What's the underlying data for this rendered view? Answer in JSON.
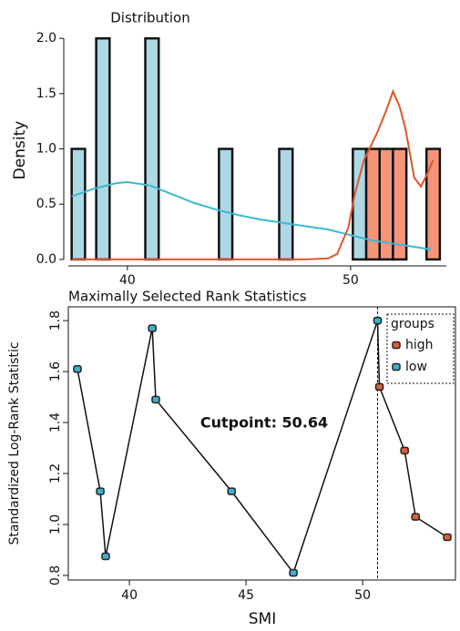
{
  "chart_data": [
    {
      "type": "histogram",
      "title": "Distribution",
      "ylabel": "Density",
      "xlim": [
        37.35,
        54.29
      ],
      "ylim": [
        -0.05,
        2.1
      ],
      "xticks": [
        40,
        50
      ],
      "yticks": [
        {
          "value": 0,
          "label": "0.0"
        },
        0.5,
        {
          "value": 1,
          "label": "1.0"
        },
        1.5,
        {
          "value": 2,
          "label": "2.0"
        }
      ],
      "series": [
        {
          "color": "#add8e6",
          "bins": [
            37.5,
            38.1,
            38.6,
            39.2,
            40.8,
            41.4,
            44.1,
            44.7,
            46.8,
            47.4,
            50.1,
            50.7
          ],
          "counts": [
            1,
            0,
            2,
            0,
            2,
            0,
            1,
            0,
            1,
            0,
            1
          ]
        },
        {
          "color": "#f4957a",
          "bins": [
            50.7,
            51.3,
            51.9,
            52.5,
            53.4,
            54.0
          ],
          "counts": [
            1,
            1,
            1,
            0,
            1
          ]
        }
      ],
      "lines": [
        {
          "color": "#3cb9d2",
          "x": [
            37.5,
            38.5,
            39.5,
            40,
            41,
            42,
            43,
            44,
            45,
            46,
            47,
            48,
            49,
            50,
            51,
            52,
            53,
            53.6
          ],
          "values": [
            0.57,
            0.64,
            0.69,
            0.7,
            0.67,
            0.59,
            0.51,
            0.45,
            0.4,
            0.36,
            0.33,
            0.3,
            0.27,
            0.22,
            0.17,
            0.14,
            0.11,
            0.09
          ]
        },
        {
          "color": "#e0552a",
          "x": [
            37.5,
            40,
            45,
            48,
            49,
            49.4,
            49.9,
            50.2,
            50.6,
            51.2,
            51.6,
            51.9,
            52.2,
            52.45,
            52.85,
            53.15,
            53.45,
            53.7
          ],
          "values": [
            0,
            0,
            0,
            0,
            0.01,
            0.05,
            0.29,
            0.6,
            0.9,
            1.15,
            1.35,
            1.52,
            1.38,
            1.19,
            0.74,
            0.66,
            0.78,
            0.9
          ]
        }
      ]
    },
    {
      "type": "line",
      "title": "Maximally Selected Rank Statistics",
      "xlabel": "SMI",
      "ylabel": "Standardized Log-Rank Statistic",
      "xlim": [
        37.38,
        53.98
      ],
      "ylim": [
        0.782,
        1.854
      ],
      "xticks": [
        40,
        45,
        50
      ],
      "yticks": [
        0.8,
        {
          "value": 1,
          "label": "1.0"
        },
        1.2,
        1.4,
        1.6,
        1.8
      ],
      "legend_title": "groups",
      "legend": "top-right",
      "cutpoint": 50.64,
      "annotation": "Cutpoint: 50.64",
      "series": [
        {
          "name": "high",
          "color": "#d9603b",
          "x": [
            50.72,
            51.8,
            52.27,
            53.63
          ],
          "values": [
            1.54,
            1.29,
            1.03,
            0.95
          ]
        },
        {
          "name": "low",
          "color": "#3fb0c8",
          "x": [
            37.77,
            38.75,
            38.98,
            40.98,
            41.13,
            44.38,
            47.03,
            50.64
          ],
          "values": [
            1.61,
            1.13,
            0.875,
            1.77,
            1.49,
            1.13,
            0.81,
            1.8
          ]
        }
      ]
    }
  ]
}
